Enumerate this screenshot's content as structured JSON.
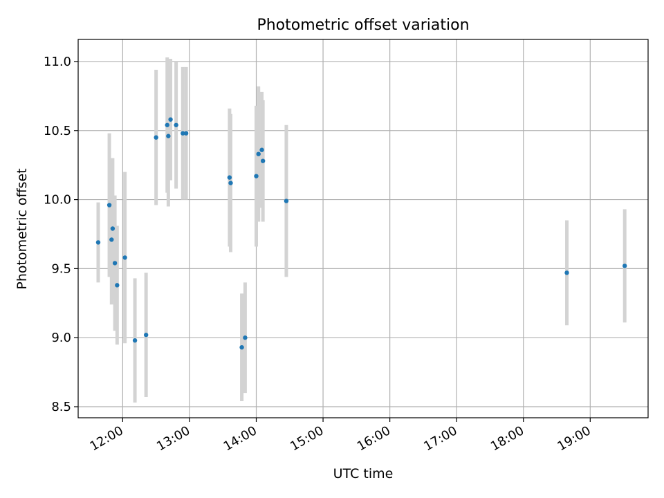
{
  "chart_data": {
    "type": "scatter",
    "title": "Photometric offset variation",
    "xlabel": "UTC time",
    "ylabel": "Photometric offset",
    "xlim": [
      "11:20",
      "19:52"
    ],
    "ylim": [
      8.42,
      11.16
    ],
    "x_ticks": [
      "12:00",
      "13:00",
      "14:00",
      "15:00",
      "16:00",
      "17:00",
      "18:00",
      "19:00"
    ],
    "y_ticks": [
      "8.5",
      "9.0",
      "9.5",
      "10.0",
      "10.5",
      "11.0"
    ],
    "grid": true,
    "colors": {
      "point": "#1f77b4",
      "errorbar": "#d3d3d3",
      "grid": "#b0b0b0"
    },
    "points": [
      {
        "x": "11:38",
        "y": 9.69,
        "err": 0.29
      },
      {
        "x": "11:48",
        "y": 9.96,
        "err": 0.52
      },
      {
        "x": "11:50",
        "y": 9.71,
        "err": 0.47
      },
      {
        "x": "11:51",
        "y": 9.79,
        "err": 0.51
      },
      {
        "x": "11:53",
        "y": 9.54,
        "err": 0.49
      },
      {
        "x": "11:55",
        "y": 9.38,
        "err": 0.43
      },
      {
        "x": "12:02",
        "y": 9.58,
        "err": 0.62
      },
      {
        "x": "12:11",
        "y": 8.98,
        "err": 0.45
      },
      {
        "x": "12:21",
        "y": 9.02,
        "err": 0.45
      },
      {
        "x": "12:30",
        "y": 10.45,
        "err": 0.49
      },
      {
        "x": "12:40",
        "y": 10.54,
        "err": 0.49
      },
      {
        "x": "12:41",
        "y": 10.46,
        "err": 0.51
      },
      {
        "x": "12:43",
        "y": 10.58,
        "err": 0.44
      },
      {
        "x": "12:48",
        "y": 10.54,
        "err": 0.46
      },
      {
        "x": "12:54",
        "y": 10.48,
        "err": 0.48
      },
      {
        "x": "12:57",
        "y": 10.48,
        "err": 0.48
      },
      {
        "x": "13:36",
        "y": 10.16,
        "err": 0.5
      },
      {
        "x": "13:37",
        "y": 10.12,
        "err": 0.5
      },
      {
        "x": "13:47",
        "y": 8.93,
        "err": 0.39
      },
      {
        "x": "13:50",
        "y": 9.0,
        "err": 0.4
      },
      {
        "x": "14:00",
        "y": 10.17,
        "err": 0.51
      },
      {
        "x": "14:02",
        "y": 10.33,
        "err": 0.49
      },
      {
        "x": "14:05",
        "y": 10.36,
        "err": 0.42
      },
      {
        "x": "14:06",
        "y": 10.28,
        "err": 0.44
      },
      {
        "x": "14:27",
        "y": 9.99,
        "err": 0.55
      },
      {
        "x": "18:39",
        "y": 9.47,
        "err": 0.38
      },
      {
        "x": "19:31",
        "y": 9.52,
        "err": 0.41
      }
    ]
  }
}
